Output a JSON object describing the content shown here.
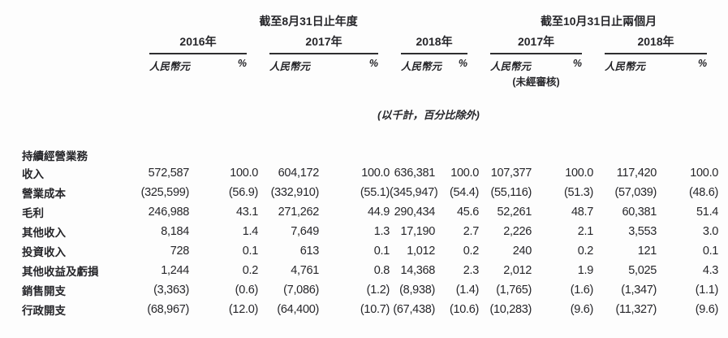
{
  "document": {
    "unit_note": "(以千計，百分比除外)",
    "unaudited_note": "(未經審核)"
  },
  "header": {
    "group_annual": "截至8月31日止年度",
    "group_two_months": "截至10月31日止兩個月",
    "col_currency": "人民幣元",
    "col_percent": "%",
    "years": [
      "2016年",
      "2017年",
      "2018年",
      "2017年",
      "2018年"
    ]
  },
  "section_title": "持續經營業務",
  "rows": [
    {
      "label": "收入",
      "v": [
        "572,587",
        "100.0",
        "604,172",
        "100.0",
        "636,381",
        "100.0",
        "107,377",
        "100.0",
        "117,420",
        "100.0"
      ]
    },
    {
      "label": "營業成本",
      "v": [
        "(325,599)",
        "(56.9)",
        "(332,910)",
        "(55.1)",
        "(345,947)",
        "(54.4)",
        "(55,116)",
        "(51.3)",
        "(57,039)",
        "(48.6)"
      ]
    },
    {
      "label": "毛利",
      "v": [
        "246,988",
        "43.1",
        "271,262",
        "44.9",
        "290,434",
        "45.6",
        "52,261",
        "48.7",
        "60,381",
        "51.4"
      ]
    },
    {
      "label": "其他收入",
      "v": [
        "8,184",
        "1.4",
        "7,649",
        "1.3",
        "17,190",
        "2.7",
        "2,226",
        "2.1",
        "3,553",
        "3.0"
      ]
    },
    {
      "label": "投資收入",
      "v": [
        "728",
        "0.1",
        "613",
        "0.1",
        "1,012",
        "0.2",
        "240",
        "0.2",
        "121",
        "0.1"
      ]
    },
    {
      "label": "其他收益及虧損",
      "v": [
        "1,244",
        "0.2",
        "4,761",
        "0.8",
        "14,368",
        "2.3",
        "2,012",
        "1.9",
        "5,025",
        "4.3"
      ]
    },
    {
      "label": "銷售開支",
      "v": [
        "(3,363)",
        "(0.6)",
        "(7,086)",
        "(1.2)",
        "(8,938)",
        "(1.4)",
        "(1,765)",
        "(1.6)",
        "(1,347)",
        "(1.1)"
      ]
    },
    {
      "label": "行政開支",
      "v": [
        "(68,967)",
        "(12.0)",
        "(64,400)",
        "(10.7)",
        "(67,438)",
        "(10.6)",
        "(10,283)",
        "(9.6)",
        "(11,327)",
        "(9.6)"
      ]
    }
  ],
  "colors": {
    "text": "#26262a",
    "rule": "#2e2e30",
    "background": "#fdfdfd"
  }
}
